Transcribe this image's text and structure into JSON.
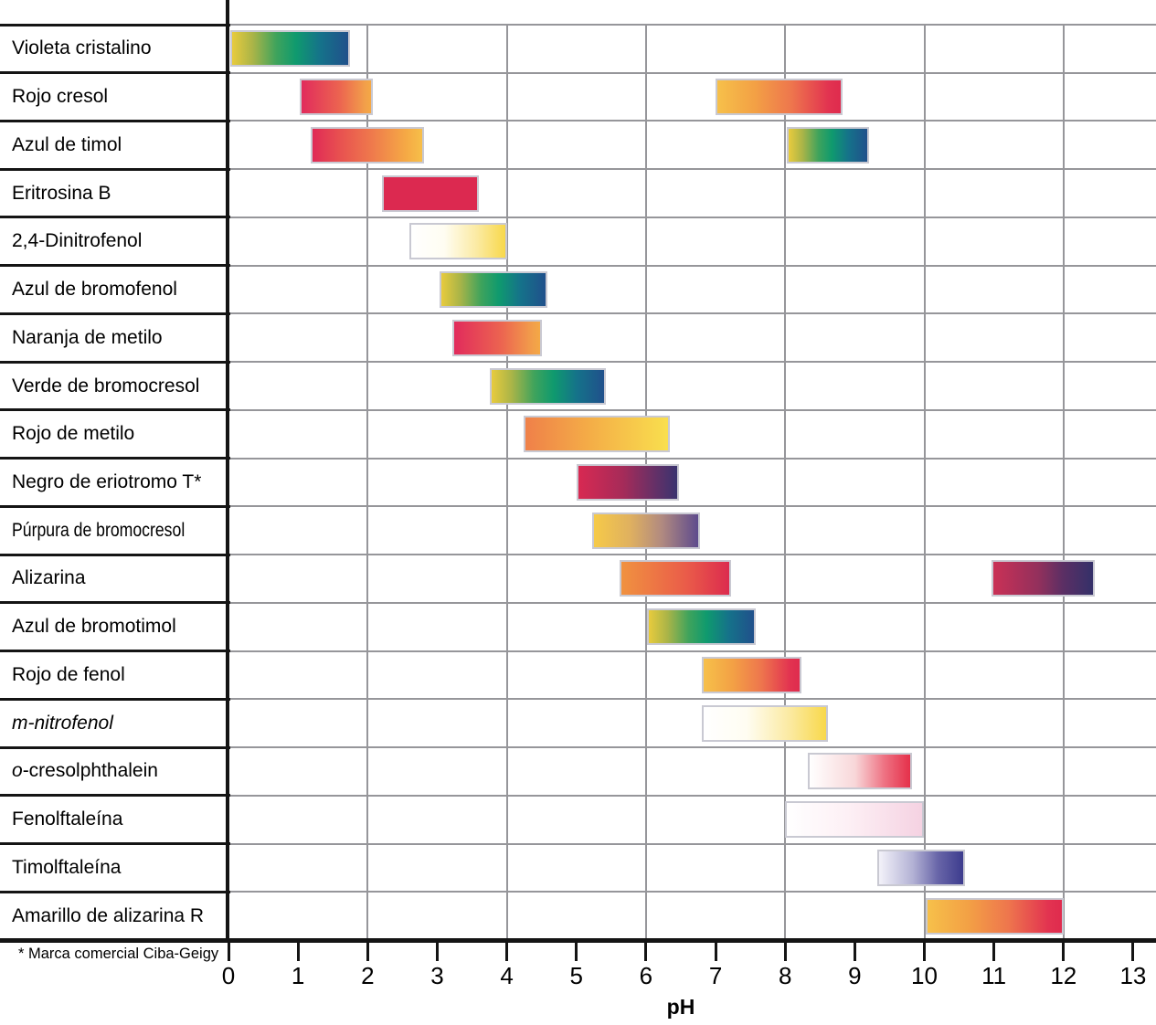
{
  "chart_data": {
    "type": "bar",
    "subtype": "horizontal_range_bars",
    "title": "",
    "xlabel": "pH",
    "ylabel": "",
    "xlim": [
      0,
      13.3
    ],
    "xticks": [
      0,
      1,
      2,
      3,
      4,
      5,
      6,
      7,
      8,
      9,
      10,
      11,
      12,
      13
    ],
    "grid_x": [
      2,
      4,
      6,
      8,
      10,
      12
    ],
    "grid": "vertical-even-ticks",
    "legend": "none",
    "footnote": "* Marca comercial Ciba-Geigy",
    "rows": [
      {
        "label": [
          {
            "t": "Violeta cristalino",
            "italic": false
          }
        ],
        "condensed": false,
        "ranges": [
          {
            "from": 0.03,
            "to": 1.75,
            "palette": "yellow_green_blue"
          }
        ]
      },
      {
        "label": [
          {
            "t": "Rojo cresol",
            "italic": false
          }
        ],
        "condensed": false,
        "ranges": [
          {
            "from": 1.02,
            "to": 2.08,
            "palette": "red_to_orange"
          },
          {
            "from": 7.0,
            "to": 8.82,
            "palette": "yellow_orange_red"
          }
        ]
      },
      {
        "label": [
          {
            "t": "Azul de timol",
            "italic": false
          }
        ],
        "condensed": false,
        "ranges": [
          {
            "from": 1.18,
            "to": 2.81,
            "palette": "red_orange_yellow"
          },
          {
            "from": 8.02,
            "to": 9.2,
            "palette": "yellow_green_blue"
          }
        ]
      },
      {
        "label": [
          {
            "t": "Eritrosina B",
            "italic": false
          }
        ],
        "condensed": false,
        "ranges": [
          {
            "from": 2.2,
            "to": 3.6,
            "palette": "solid_crimson"
          }
        ]
      },
      {
        "label": [
          {
            "t": "2,4-Dinitrofenol",
            "italic": false
          }
        ],
        "condensed": false,
        "ranges": [
          {
            "from": 2.6,
            "to": 4.0,
            "palette": "white_to_yellow"
          }
        ]
      },
      {
        "label": [
          {
            "t": "Azul de bromofenol",
            "italic": false
          }
        ],
        "condensed": false,
        "ranges": [
          {
            "from": 3.04,
            "to": 4.58,
            "palette": "yellow_green_blue"
          }
        ]
      },
      {
        "label": [
          {
            "t": "Naranja de metilo",
            "italic": false
          }
        ],
        "condensed": false,
        "ranges": [
          {
            "from": 3.22,
            "to": 4.5,
            "palette": "red_to_orange"
          }
        ]
      },
      {
        "label": [
          {
            "t": "Verde de bromocresol",
            "italic": false
          }
        ],
        "condensed": false,
        "ranges": [
          {
            "from": 3.75,
            "to": 5.42,
            "palette": "yellow_green_blue"
          }
        ]
      },
      {
        "label": [
          {
            "t": "Rojo de metilo",
            "italic": false
          }
        ],
        "condensed": false,
        "ranges": [
          {
            "from": 4.24,
            "to": 6.34,
            "palette": "orange_to_yellow"
          }
        ]
      },
      {
        "label": [
          {
            "t": "Negro de eriotromo T*",
            "italic": false
          }
        ],
        "condensed": false,
        "ranges": [
          {
            "from": 5.0,
            "to": 6.48,
            "palette": "crimson_to_darkpurple"
          }
        ]
      },
      {
        "label": [
          {
            "t": "Púrpura de bromocresol",
            "italic": false
          }
        ],
        "condensed": true,
        "ranges": [
          {
            "from": 5.22,
            "to": 6.78,
            "palette": "yellow_to_purple"
          }
        ]
      },
      {
        "label": [
          {
            "t": "Alizarina",
            "italic": false
          }
        ],
        "condensed": false,
        "ranges": [
          {
            "from": 5.62,
            "to": 7.22,
            "palette": "orange_to_red"
          },
          {
            "from": 10.97,
            "to": 12.45,
            "palette": "crimson_to_navy"
          }
        ]
      },
      {
        "label": [
          {
            "t": "Azul de bromotimol",
            "italic": false
          }
        ],
        "condensed": false,
        "ranges": [
          {
            "from": 6.02,
            "to": 7.58,
            "palette": "yellow_green_blue"
          }
        ]
      },
      {
        "label": [
          {
            "t": "Rojo de fenol",
            "italic": false
          }
        ],
        "condensed": false,
        "ranges": [
          {
            "from": 6.8,
            "to": 8.24,
            "palette": "yellow_orange_red"
          }
        ]
      },
      {
        "label": [
          {
            "t": "m-nitrofenol",
            "italic": true
          }
        ],
        "condensed": false,
        "ranges": [
          {
            "from": 6.8,
            "to": 8.62,
            "palette": "white_to_yellow"
          }
        ]
      },
      {
        "label": [
          {
            "t": "o",
            "italic": true
          },
          {
            "t": "-cresolphthalein",
            "italic": false
          }
        ],
        "condensed": false,
        "ranges": [
          {
            "from": 8.32,
            "to": 9.82,
            "palette": "white_to_red"
          }
        ]
      },
      {
        "label": [
          {
            "t": "Fenolftaleína",
            "italic": false
          }
        ],
        "condensed": false,
        "ranges": [
          {
            "from": 8.0,
            "to": 10.0,
            "palette": "white_to_pink"
          }
        ]
      },
      {
        "label": [
          {
            "t": "Timolftaleína",
            "italic": false
          }
        ],
        "condensed": false,
        "ranges": [
          {
            "from": 9.32,
            "to": 10.58,
            "palette": "white_to_indigo"
          }
        ]
      },
      {
        "label": [
          {
            "t": "Amarillo de alizarina R",
            "italic": false
          }
        ],
        "condensed": false,
        "ranges": [
          {
            "from": 10.02,
            "to": 12.0,
            "palette": "yellow_orange_red"
          }
        ]
      }
    ],
    "palettes": {
      "yellow_green_blue": [
        "#e8cb3d 0%",
        "#a9b448 18%",
        "#3fa35c 38%",
        "#0f9a6e 55%",
        "#15728a 76%",
        "#20508b 100%"
      ],
      "red_to_orange": [
        "#e12b5c 0%",
        "#ec6450 55%",
        "#f2a04a 92%",
        "#f4a845 100%"
      ],
      "red_orange_yellow": [
        "#e02a56 0%",
        "#e85150 25%",
        "#ef7b4c 55%",
        "#f5a945 85%",
        "#f7bf49 100%"
      ],
      "yellow_orange_red": [
        "#f6c04a 0%",
        "#f3a145 30%",
        "#ee764d 60%",
        "#e23350 90%",
        "#df2b4e 100%"
      ],
      "solid_crimson": [
        "#dc2950 0%",
        "#dc2950 100%"
      ],
      "white_to_yellow": [
        "#ffffff 0%",
        "#fffdf2 35%",
        "#fbeaa2 70%",
        "#f8d84b 100%"
      ],
      "orange_to_yellow": [
        "#ef8049 0%",
        "#f4ad47 45%",
        "#f9df4e 100%"
      ],
      "crimson_to_darkpurple": [
        "#d82952 0%",
        "#a62b59 45%",
        "#6a3066 75%",
        "#3a336f 100%"
      ],
      "yellow_to_purple": [
        "#f6ca48 0%",
        "#dfb060 35%",
        "#b18a80 65%",
        "#5e4b8d 100%"
      ],
      "orange_to_red": [
        "#f09240 0%",
        "#ea5c49 60%",
        "#dc2b4e 100%"
      ],
      "crimson_to_navy": [
        "#ca3156 0%",
        "#93305c 45%",
        "#5b2f64 70%",
        "#343069 100%"
      ],
      "white_to_red": [
        "#ffffff 0%",
        "#f8d7d9 45%",
        "#ee7081 75%",
        "#e5304a 100%"
      ],
      "white_to_pink": [
        "#ffffff 0%",
        "#fdf0f5 45%",
        "#f5d2e2 100%"
      ],
      "white_to_indigo": [
        "#f3f2f9 0%",
        "#b3b2d5 40%",
        "#6865a8 70%",
        "#3d3c8e 100%"
      ]
    },
    "colors": {
      "axis": "#141414",
      "label_divider": "#141414",
      "grid": "#96969a",
      "row_divider": "#96969a",
      "bar_border": "#c9c9d2",
      "text": "#000000",
      "background": "#ffffff"
    }
  }
}
